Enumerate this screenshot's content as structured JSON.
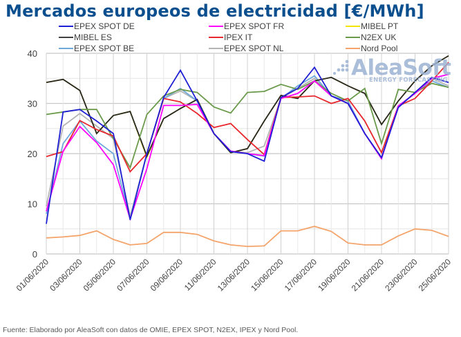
{
  "title": "Mercados europeos de electricidad [€/MWh]",
  "source_note": "Fuente: Elaborado por AleaSoft con datos de OMIE, EPEX SPOT, N2EX, IPEX y Nord Pool.",
  "watermark": {
    "brand": "AleaSoft",
    "tagline": "ENERGY FORECASTING"
  },
  "chart_data": {
    "type": "line",
    "title": "Mercados europeos de electricidad [€/MWh]",
    "xlabel": "",
    "ylabel": "€/MWh",
    "ylim": [
      0,
      40
    ],
    "yticks": [
      0,
      10,
      20,
      30,
      40
    ],
    "ytick_labels": [
      "0",
      "10",
      "20",
      "30",
      "40"
    ],
    "grid": true,
    "legend_position": "top",
    "x": [
      "01/06/2020",
      "02/06/2020",
      "03/06/2020",
      "04/06/2020",
      "05/06/2020",
      "06/06/2020",
      "07/06/2020",
      "08/06/2020",
      "09/06/2020",
      "10/06/2020",
      "11/06/2020",
      "12/06/2020",
      "13/06/2020",
      "14/06/2020",
      "15/06/2020",
      "16/06/2020",
      "17/06/2020",
      "18/06/2020",
      "19/06/2020",
      "20/06/2020",
      "21/06/2020",
      "22/06/2020",
      "23/06/2020",
      "24/06/2020",
      "25/06/2020"
    ],
    "xtick_labels": [
      "01/06/2020",
      "03/06/2020",
      "05/06/2020",
      "07/06/2020",
      "09/06/2020",
      "11/06/2020",
      "13/06/2020",
      "15/06/2020",
      "17/06/2020",
      "19/06/2020",
      "21/06/2020",
      "23/06/2020",
      "25/06/2020"
    ],
    "series": [
      {
        "name": "EPEX SPOT NL",
        "color": "#b4b4b4",
        "values": [
          9.5,
          25.5,
          28.0,
          25.5,
          23.0,
          7.5,
          20.0,
          31.0,
          32.5,
          30.5,
          24.0,
          20.5,
          20.2,
          21.5,
          31.0,
          33.0,
          35.0,
          31.5,
          30.0,
          24.0,
          19.2,
          29.5,
          32.0,
          35.0,
          33.5
        ]
      },
      {
        "name": "EPEX SPOT BE",
        "color": "#6fa8dc",
        "values": [
          8.0,
          22.0,
          26.5,
          22.5,
          20.0,
          7.0,
          20.0,
          31.0,
          33.0,
          30.5,
          24.0,
          20.5,
          20.0,
          19.5,
          31.0,
          33.5,
          35.5,
          31.5,
          30.5,
          24.0,
          19.0,
          29.5,
          32.0,
          34.5,
          33.2
        ]
      },
      {
        "name": "MIBEL PT",
        "color": "#f2e600",
        "values": [
          34.2,
          34.8,
          32.6,
          24.0,
          27.6,
          28.4,
          19.3,
          27.0,
          29.0,
          30.8,
          24.0,
          20.2,
          21.0,
          26.5,
          31.6,
          31.0,
          34.5,
          35.2,
          33.5,
          32.0,
          25.8,
          30.5,
          34.5,
          37.5,
          39.5
        ]
      },
      {
        "name": "MIBEL ES",
        "color": "#262626",
        "values": [
          34.2,
          34.8,
          32.6,
          24.0,
          27.6,
          28.4,
          19.5,
          27.0,
          29.0,
          30.8,
          24.0,
          20.2,
          21.0,
          26.5,
          31.6,
          31.0,
          34.5,
          35.2,
          33.5,
          32.0,
          25.8,
          30.5,
          34.5,
          37.5,
          39.5
        ]
      },
      {
        "name": "N2EX UK",
        "color": "#6a9a4a",
        "values": [
          27.8,
          28.3,
          28.8,
          28.8,
          23.0,
          17.2,
          27.8,
          31.5,
          32.8,
          32.2,
          29.3,
          28.1,
          32.2,
          32.4,
          33.8,
          32.8,
          34.5,
          32.0,
          30.5,
          33.0,
          22.0,
          32.8,
          32.2,
          34.0,
          33.2
        ]
      },
      {
        "name": "IPEX IT",
        "color": "#e8282e",
        "values": [
          19.4,
          20.4,
          26.6,
          24.8,
          23.5,
          16.4,
          20.0,
          31.0,
          30.3,
          28.0,
          25.2,
          26.0,
          22.8,
          19.8,
          31.2,
          31.3,
          31.5,
          30.0,
          31.0,
          26.5,
          20.2,
          29.5,
          31.0,
          34.5,
          38.2
        ]
      },
      {
        "name": "EPEX SPOT FR",
        "color": "#ff00ff",
        "values": [
          8.5,
          20.5,
          25.4,
          22.2,
          17.8,
          7.0,
          17.0,
          29.6,
          29.6,
          29.8,
          24.0,
          20.5,
          20.0,
          19.6,
          31.0,
          32.0,
          34.5,
          31.5,
          30.0,
          24.0,
          19.0,
          29.5,
          32.0,
          35.0,
          35.8
        ]
      },
      {
        "name": "EPEX SPOT DE",
        "color": "#1f1fd6",
        "values": [
          6.0,
          28.3,
          28.8,
          26.5,
          24.0,
          6.8,
          20.0,
          31.2,
          36.6,
          30.5,
          24.0,
          20.4,
          20.0,
          18.5,
          31.2,
          33.0,
          37.2,
          31.5,
          30.0,
          24.0,
          19.2,
          29.2,
          32.2,
          35.2,
          34.2
        ]
      },
      {
        "name": "Nord Pool",
        "color": "#f4a46a",
        "values": [
          3.2,
          3.4,
          3.7,
          4.6,
          2.9,
          1.8,
          2.1,
          4.3,
          4.3,
          3.9,
          2.6,
          1.8,
          1.5,
          1.6,
          4.6,
          4.6,
          5.5,
          4.5,
          2.2,
          1.8,
          1.8,
          3.6,
          5.0,
          4.7,
          3.5
        ]
      }
    ],
    "legend": [
      {
        "name": "EPEX SPOT DE",
        "color": "#1f1fd6"
      },
      {
        "name": "EPEX SPOT FR",
        "color": "#ff00ff"
      },
      {
        "name": "MIBEL PT",
        "color": "#f2e600"
      },
      {
        "name": "MIBEL ES",
        "color": "#404040"
      },
      {
        "name": "IPEX IT",
        "color": "#e8282e"
      },
      {
        "name": "N2EX UK",
        "color": "#6a9a4a"
      },
      {
        "name": "EPEX SPOT BE",
        "color": "#6fa8dc"
      },
      {
        "name": "EPEX SPOT NL",
        "color": "#b4b4b4"
      },
      {
        "name": "Nord Pool",
        "color": "#f4a46a"
      }
    ]
  }
}
